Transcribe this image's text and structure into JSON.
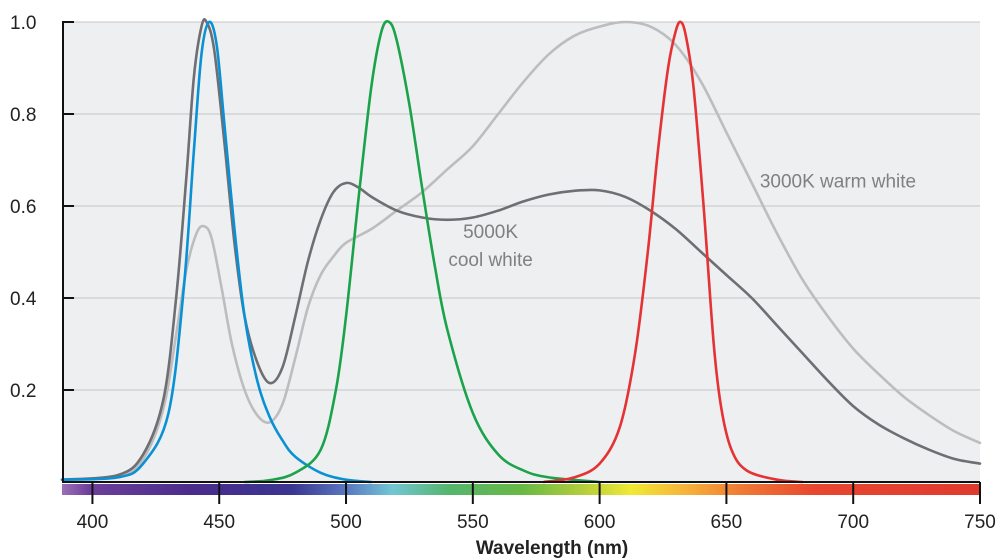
{
  "chart_data": {
    "type": "line",
    "title": "",
    "xlabel": "Wavelength (nm)",
    "ylabel": "",
    "xlim": [
      388,
      750
    ],
    "ylim": [
      0,
      1.0
    ],
    "x_ticks": [
      400,
      450,
      500,
      550,
      600,
      650,
      700,
      750
    ],
    "y_ticks": [
      0.2,
      0.4,
      0.6,
      0.8,
      1.0
    ],
    "x_tick_labels": [
      "400",
      "450",
      "500",
      "550",
      "600",
      "650",
      "700",
      "750"
    ],
    "y_tick_labels": [
      "0.2",
      "0.4",
      "0.6",
      "0.8",
      "1.0"
    ],
    "grid": "horizontal",
    "plot_background": "#eeeff1",
    "spectrum_bar": true,
    "annotations": [
      {
        "text": "5000K",
        "x": 557,
        "y": 0.53
      },
      {
        "text": "cool white",
        "x": 557,
        "y": 0.47
      },
      {
        "text": "3000K warm white",
        "x": 694,
        "y": 0.64
      }
    ],
    "series": [
      {
        "color": "#0a91d4",
        "points": [
          [
            388,
            0.005
          ],
          [
            410,
            0.01
          ],
          [
            420,
            0.04
          ],
          [
            430,
            0.15
          ],
          [
            436,
            0.42
          ],
          [
            440,
            0.72
          ],
          [
            443,
            0.93
          ],
          [
            446,
            1.0
          ],
          [
            449,
            0.95
          ],
          [
            452,
            0.78
          ],
          [
            456,
            0.55
          ],
          [
            460,
            0.36
          ],
          [
            465,
            0.22
          ],
          [
            470,
            0.14
          ],
          [
            475,
            0.09
          ],
          [
            480,
            0.055
          ],
          [
            490,
            0.02
          ],
          [
            500,
            0.005
          ],
          [
            510,
            0.0
          ]
        ]
      },
      {
        "color": "#1aa34a",
        "points": [
          [
            460,
            0.0
          ],
          [
            470,
            0.004
          ],
          [
            480,
            0.02
          ],
          [
            490,
            0.07
          ],
          [
            496,
            0.2
          ],
          [
            500,
            0.36
          ],
          [
            505,
            0.62
          ],
          [
            510,
            0.86
          ],
          [
            514,
            0.98
          ],
          [
            517,
            1.0
          ],
          [
            520,
            0.96
          ],
          [
            525,
            0.82
          ],
          [
            530,
            0.64
          ],
          [
            535,
            0.47
          ],
          [
            540,
            0.33
          ],
          [
            550,
            0.15
          ],
          [
            560,
            0.06
          ],
          [
            570,
            0.025
          ],
          [
            580,
            0.01
          ],
          [
            600,
            0.0
          ]
        ]
      },
      {
        "color": "#e53234",
        "points": [
          [
            578,
            0.0
          ],
          [
            590,
            0.01
          ],
          [
            600,
            0.04
          ],
          [
            608,
            0.12
          ],
          [
            614,
            0.28
          ],
          [
            619,
            0.5
          ],
          [
            623,
            0.72
          ],
          [
            627,
            0.9
          ],
          [
            630,
            0.98
          ],
          [
            632,
            1.0
          ],
          [
            634,
            0.97
          ],
          [
            637,
            0.86
          ],
          [
            641,
            0.6
          ],
          [
            645,
            0.3
          ],
          [
            648,
            0.16
          ],
          [
            652,
            0.07
          ],
          [
            658,
            0.025
          ],
          [
            670,
            0.005
          ],
          [
            680,
            0.0
          ]
        ]
      },
      {
        "color": "#6e6e73",
        "points": [
          [
            388,
            0.005
          ],
          [
            410,
            0.015
          ],
          [
            420,
            0.06
          ],
          [
            428,
            0.18
          ],
          [
            433,
            0.4
          ],
          [
            437,
            0.66
          ],
          [
            440,
            0.88
          ],
          [
            443,
            0.99
          ],
          [
            445,
            1.0
          ],
          [
            448,
            0.94
          ],
          [
            452,
            0.74
          ],
          [
            456,
            0.52
          ],
          [
            460,
            0.36
          ],
          [
            465,
            0.26
          ],
          [
            470,
            0.215
          ],
          [
            475,
            0.25
          ],
          [
            480,
            0.36
          ],
          [
            485,
            0.48
          ],
          [
            490,
            0.57
          ],
          [
            495,
            0.63
          ],
          [
            500,
            0.65
          ],
          [
            505,
            0.64
          ],
          [
            510,
            0.62
          ],
          [
            520,
            0.59
          ],
          [
            530,
            0.575
          ],
          [
            540,
            0.57
          ],
          [
            550,
            0.575
          ],
          [
            560,
            0.59
          ],
          [
            570,
            0.61
          ],
          [
            580,
            0.625
          ],
          [
            590,
            0.633
          ],
          [
            600,
            0.634
          ],
          [
            610,
            0.62
          ],
          [
            620,
            0.59
          ],
          [
            630,
            0.55
          ],
          [
            640,
            0.5
          ],
          [
            650,
            0.45
          ],
          [
            660,
            0.4
          ],
          [
            670,
            0.34
          ],
          [
            680,
            0.28
          ],
          [
            690,
            0.22
          ],
          [
            700,
            0.165
          ],
          [
            710,
            0.125
          ],
          [
            720,
            0.095
          ],
          [
            730,
            0.07
          ],
          [
            740,
            0.05
          ],
          [
            750,
            0.04
          ]
        ]
      },
      {
        "color": "#bdbdbf",
        "points": [
          [
            388,
            0.005
          ],
          [
            410,
            0.012
          ],
          [
            420,
            0.05
          ],
          [
            428,
            0.16
          ],
          [
            433,
            0.32
          ],
          [
            437,
            0.46
          ],
          [
            441,
            0.54
          ],
          [
            444,
            0.556
          ],
          [
            447,
            0.53
          ],
          [
            451,
            0.42
          ],
          [
            455,
            0.3
          ],
          [
            460,
            0.2
          ],
          [
            465,
            0.145
          ],
          [
            470,
            0.13
          ],
          [
            475,
            0.17
          ],
          [
            480,
            0.27
          ],
          [
            485,
            0.38
          ],
          [
            490,
            0.45
          ],
          [
            495,
            0.49
          ],
          [
            500,
            0.52
          ],
          [
            510,
            0.55
          ],
          [
            520,
            0.59
          ],
          [
            530,
            0.63
          ],
          [
            540,
            0.68
          ],
          [
            550,
            0.73
          ],
          [
            560,
            0.8
          ],
          [
            570,
            0.87
          ],
          [
            580,
            0.93
          ],
          [
            590,
            0.97
          ],
          [
            600,
            0.99
          ],
          [
            610,
            1.0
          ],
          [
            620,
            0.99
          ],
          [
            630,
            0.95
          ],
          [
            640,
            0.87
          ],
          [
            650,
            0.76
          ],
          [
            660,
            0.65
          ],
          [
            670,
            0.54
          ],
          [
            680,
            0.44
          ],
          [
            690,
            0.36
          ],
          [
            700,
            0.29
          ],
          [
            710,
            0.235
          ],
          [
            720,
            0.185
          ],
          [
            730,
            0.145
          ],
          [
            740,
            0.11
          ],
          [
            750,
            0.085
          ]
        ]
      }
    ]
  }
}
